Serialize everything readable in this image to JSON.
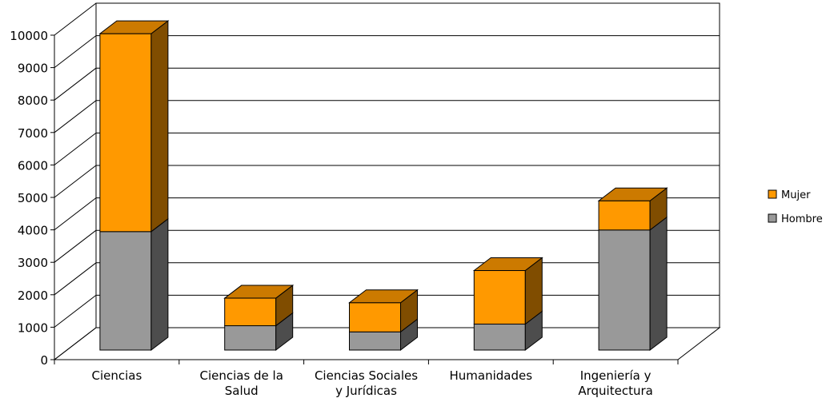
{
  "chart_data": {
    "type": "bar",
    "stacked": true,
    "three_d": true,
    "title": "",
    "xlabel": "",
    "ylabel": "",
    "ylim": [
      0,
      10000
    ],
    "yticks": [
      0,
      1000,
      2000,
      3000,
      4000,
      5000,
      6000,
      7000,
      8000,
      9000,
      10000
    ],
    "grid": true,
    "legend_position": "right",
    "categories": [
      [
        "Ciencias"
      ],
      [
        "Ciencias de la",
        "Salud"
      ],
      [
        "Ciencias Sociales",
        "y Jurídicas"
      ],
      [
        "Humanidades"
      ],
      [
        "Ingeniería y",
        "Arquitectura"
      ]
    ],
    "series": [
      {
        "name": "Hombre",
        "values": [
          3650,
          750,
          560,
          800,
          3700
        ],
        "color": "#999999",
        "side_color": "#4d4d4d",
        "top_color": "#bfbfbf"
      },
      {
        "name": "Mujer",
        "values": [
          6100,
          850,
          900,
          1650,
          900
        ],
        "color": "#ff9900",
        "side_color": "#804d00",
        "top_color": "#cc7a00"
      }
    ],
    "legend_order": [
      "Mujer",
      "Hombre"
    ]
  }
}
